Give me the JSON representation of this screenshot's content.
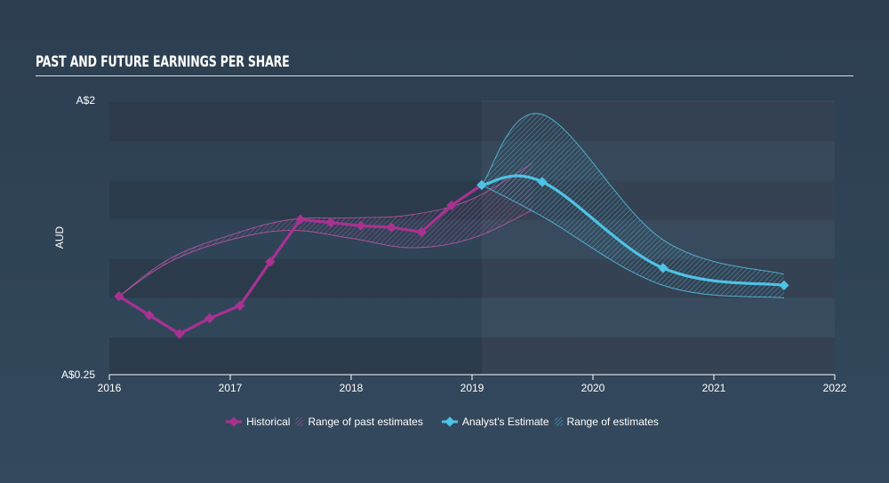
{
  "header": {
    "title": "PAST AND FUTURE EARNINGS PER SHARE"
  },
  "legend": {
    "historical": "Historical",
    "past_range": "Range of past estimates",
    "analyst": "Analyst's Estimate",
    "future_range": "Range of estimates"
  },
  "colors": {
    "historical": "#a83291",
    "historical_range": "#b0579f",
    "analyst": "#4ec3e6",
    "analyst_range": "#53b7d8",
    "band": "#2b3a4a",
    "grid_text": "#ffffff"
  },
  "chart_data": {
    "type": "line",
    "title": "PAST AND FUTURE EARNINGS PER SHARE",
    "ylabel": "AUD",
    "ylim": [
      0.25,
      2
    ],
    "xlim": [
      2016,
      2022
    ],
    "y_tick_labels": [
      "A$2",
      "A$0.25"
    ],
    "x_tick_labels": [
      "2016",
      "2017",
      "2018",
      "2019",
      "2020",
      "2021",
      "2022"
    ],
    "grid": true,
    "legend_position": "bottom-center",
    "series": [
      {
        "name": "Historical",
        "x": [
          2016.08,
          2016.33,
          2016.58,
          2016.83,
          2017.08,
          2017.33,
          2017.58,
          2017.83,
          2018.08,
          2018.33,
          2018.58,
          2018.83,
          2019.08
        ],
        "y": [
          0.75,
          0.63,
          0.51,
          0.61,
          0.69,
          0.97,
          1.24,
          1.22,
          1.2,
          1.19,
          1.16,
          1.33,
          1.46
        ]
      },
      {
        "name": "Analyst's Estimate",
        "x": [
          2019.08,
          2019.58,
          2020.58,
          2021.58
        ],
        "y": [
          1.46,
          1.48,
          0.93,
          0.82
        ]
      }
    ],
    "ranges": [
      {
        "name": "Range of past estimates",
        "x": [
          2016.08,
          2016.5,
          2017,
          2017.5,
          2018,
          2018.5,
          2019,
          2019.5
        ],
        "high": [
          0.75,
          0.99,
          1.14,
          1.24,
          1.25,
          1.27,
          1.37,
          1.6
        ],
        "low": [
          0.75,
          0.97,
          1.11,
          1.17,
          1.12,
          1.06,
          1.12,
          1.3
        ]
      },
      {
        "name": "Range of estimates",
        "x": [
          2019.08,
          2019.58,
          2020.58,
          2021.58
        ],
        "high": [
          1.46,
          1.91,
          1.11,
          0.89
        ],
        "low": [
          1.46,
          1.26,
          0.82,
          0.74
        ]
      }
    ]
  }
}
